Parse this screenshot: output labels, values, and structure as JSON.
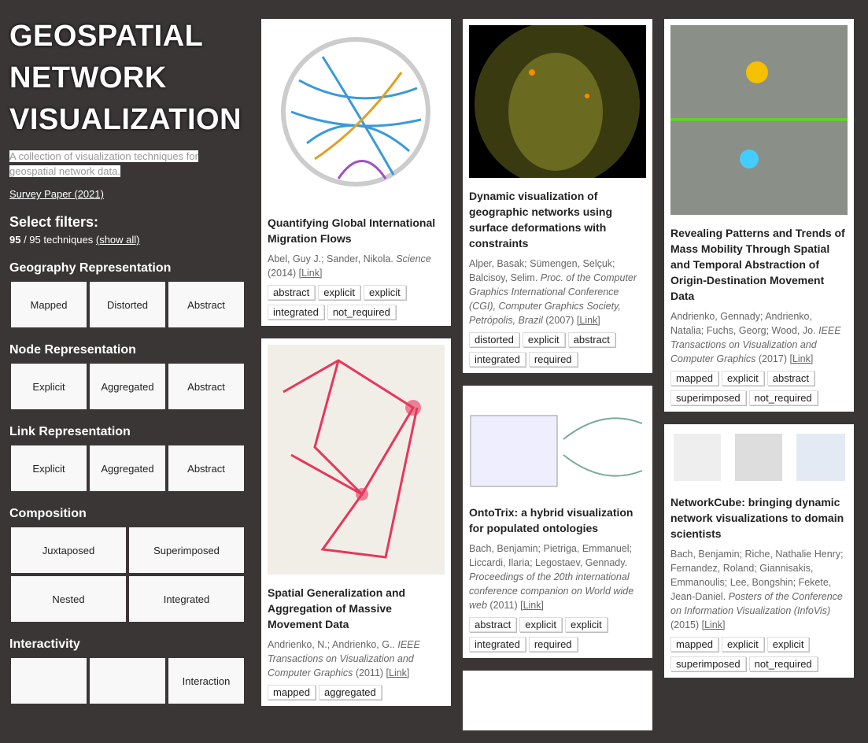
{
  "sidebar": {
    "title": "GEOSPATIAL NETWORK VISUALIZATION",
    "subtitle": "A collection of visualization techniques for geospatial network data.",
    "survey_link": "Survey Paper (2021)",
    "filters_heading": "Select filters:",
    "count_selected": "95",
    "count_rest": " / 95 techniques ",
    "show_all": "(show all)",
    "groups": [
      {
        "name": "Geography Representation",
        "options": [
          "Mapped",
          "Distorted",
          "Abstract"
        ]
      },
      {
        "name": "Node Representation",
        "options": [
          "Explicit",
          "Aggregated",
          "Abstract"
        ]
      },
      {
        "name": "Link Representation",
        "options": [
          "Explicit",
          "Aggregated",
          "Abstract"
        ]
      },
      {
        "name": "Composition",
        "options": [
          "Juxtaposed",
          "Superimposed",
          "Nested",
          "Integrated"
        ]
      },
      {
        "name": "Interactivity",
        "options": [
          "Interaction"
        ]
      }
    ]
  },
  "columns": [
    [
      {
        "title": "Quantifying Global International Migration Flows",
        "authors": "Abel, Guy J.; Sander, Nikola. ",
        "venue": "Science",
        "year": " (2014) ",
        "link": "[Link]",
        "tags": [
          "abstract",
          "explicit",
          "explicit",
          "integrated",
          "not_required"
        ]
      },
      {
        "title": "Spatial Generalization and Aggregation of Massive Movement Data",
        "authors": "Andrienko, N.; Andrienko, G.. ",
        "venue": "IEEE Transactions on Visualization and Computer Graphics",
        "year": " (2011) ",
        "link": "[Link]",
        "tags": [
          "mapped",
          "aggregated"
        ]
      }
    ],
    [
      {
        "title": "Dynamic visualization of geographic networks using surface deformations with constraints",
        "authors": "Alper, Basak; Sümengen, Selçuk; Balcisoy, Selim. ",
        "venue": "Proc. of the Computer Graphics International Conference (CGI), Computer Graphics Society, Petrópolis, Brazil",
        "year": " (2007) ",
        "link": "[Link]",
        "tags": [
          "distorted",
          "explicit",
          "abstract",
          "integrated",
          "required"
        ]
      },
      {
        "title": "OntoTrix: a hybrid visualization for populated ontologies",
        "authors": "Bach, Benjamin; Pietriga, Emmanuel; Liccardi, Ilaria; Legostaev, Gennady. ",
        "venue": "Proceedings of the 20th international conference companion on World wide web",
        "year": " (2011) ",
        "link": "[Link]",
        "tags": [
          "abstract",
          "explicit",
          "explicit",
          "integrated",
          "required"
        ]
      }
    ],
    [
      {
        "title": "Revealing Patterns and Trends of Mass Mobility Through Spatial and Temporal Abstraction of Origin-Destination Movement Data",
        "authors": "Andrienko, Gennady; Andrienko, Natalia; Fuchs, Georg; Wood, Jo. ",
        "venue": "IEEE Transactions on Visualization and Computer Graphics",
        "year": " (2017) ",
        "link": "[Link]",
        "tags": [
          "mapped",
          "explicit",
          "abstract",
          "superimposed",
          "not_required"
        ]
      },
      {
        "title": "NetworkCube: bringing dynamic network visualizations to domain scientists",
        "authors": "Bach, Benjamin; Riche, Nathalie Henry; Fernandez, Roland; Giannisakis, Emmanoulis; Lee, Bongshin; Fekete, Jean-Daniel. ",
        "venue": "Posters of the Conference on Information Visualization (InfoVis)",
        "year": " (2015) ",
        "link": "[Link]",
        "tags": [
          "mapped",
          "explicit",
          "explicit",
          "superimposed",
          "not_required"
        ]
      }
    ]
  ]
}
